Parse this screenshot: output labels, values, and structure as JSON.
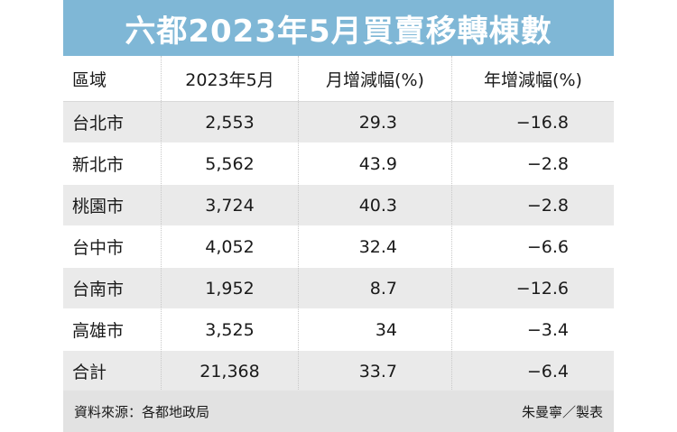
{
  "title": "六都2023年5月買賣移轉棟數",
  "columns": [
    "區域",
    "2023年5月",
    "月增減幅(%)",
    "年增減幅(%)"
  ],
  "rows": [
    {
      "area": "台北市",
      "may2023": "2,553",
      "mom": "29.3",
      "yoy": "−16.8"
    },
    {
      "area": "新北市",
      "may2023": "5,562",
      "mom": "43.9",
      "yoy": "−2.8"
    },
    {
      "area": "桃園市",
      "may2023": "3,724",
      "mom": "40.3",
      "yoy": "−2.8"
    },
    {
      "area": "台中市",
      "may2023": "4,052",
      "mom": "32.4",
      "yoy": "−6.6"
    },
    {
      "area": "台南市",
      "may2023": "1,952",
      "mom": "8.7",
      "yoy": "−12.6"
    },
    {
      "area": "高雄市",
      "may2023": "3,525",
      "mom": "34",
      "yoy": "−3.4"
    },
    {
      "area": "合計",
      "may2023": "21,368",
      "mom": "33.7",
      "yoy": "−6.4"
    }
  ],
  "footer": {
    "source": "資料來源：各都地政局",
    "credit": "朱曼寧／製表"
  }
}
